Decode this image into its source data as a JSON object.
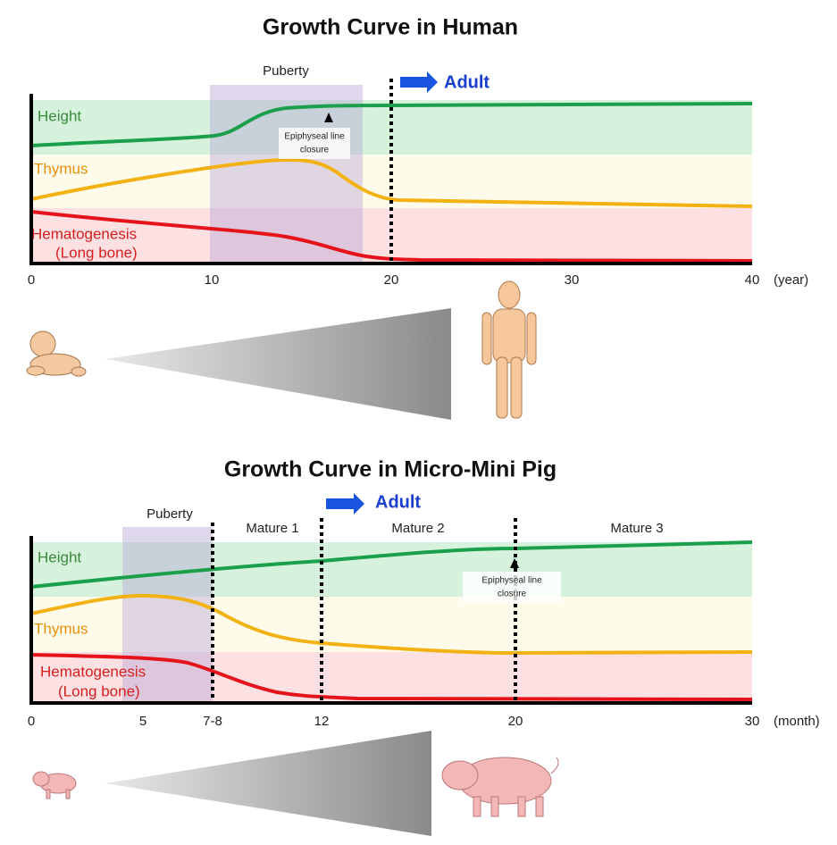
{
  "panels": [
    {
      "title": "Growth Curve in Human",
      "puberty": "Puberty",
      "adult": "Adult",
      "rows": [
        "Height",
        "Thymus",
        "Hematogenesis",
        "(Long bone)"
      ],
      "annotation": [
        "Epiphyseal line",
        "closure"
      ],
      "x_ticks": [
        "0",
        "10",
        "20",
        "30",
        "40"
      ],
      "x_unit": "(year)"
    },
    {
      "title": "Growth Curve in Micro-Mini Pig",
      "puberty": "Puberty",
      "adult": "Adult",
      "stages": [
        "Mature 1",
        "Mature 2",
        "Mature 3"
      ],
      "rows": [
        "Height",
        "Thymus",
        "Hematogenesis",
        "(Long bone)"
      ],
      "annotation": [
        "Epiphyseal line",
        "closure"
      ],
      "x_ticks": [
        "0",
        "5",
        "7-8",
        "12",
        "20",
        "30"
      ],
      "x_unit": "(month)"
    }
  ]
}
